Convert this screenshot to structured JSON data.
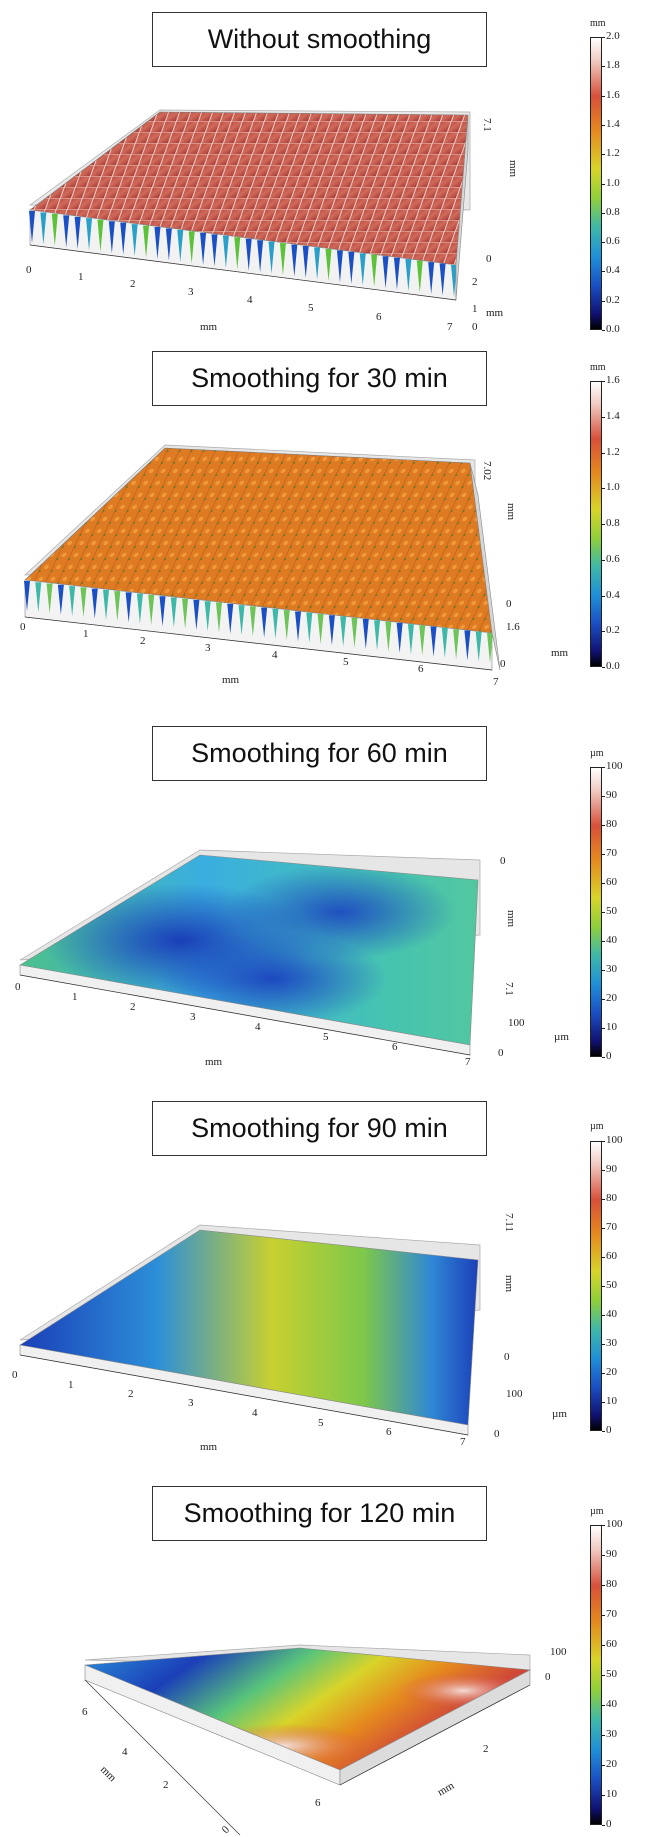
{
  "panels": [
    {
      "title": "Without smoothing",
      "colorbar": {
        "unit": "mm",
        "ticks": [
          "2.0",
          "1.8",
          "1.6",
          "1.4",
          "1.2",
          "1.0",
          "0.8",
          "0.6",
          "0.4",
          "0.2",
          "0.0"
        ]
      },
      "x_axis": {
        "label": "mm",
        "ticks": [
          "0",
          "1",
          "2",
          "3",
          "4",
          "5",
          "6",
          "7"
        ]
      },
      "y_axis": {
        "label": "mm",
        "ticks": [
          "7.1",
          "0"
        ]
      },
      "z_axis": {
        "label": "mm",
        "ticks": [
          "0",
          "1",
          "2"
        ]
      }
    },
    {
      "title": "Smoothing  for 30 min",
      "colorbar": {
        "unit": "mm",
        "ticks": [
          "1.6",
          "1.4",
          "1.2",
          "1.0",
          "0.8",
          "0.6",
          "0.4",
          "0.2",
          "0.0"
        ]
      },
      "x_axis": {
        "label": "mm",
        "ticks": [
          "0",
          "1",
          "2",
          "3",
          "4",
          "5",
          "6",
          "7"
        ]
      },
      "y_axis": {
        "label": "mm",
        "ticks": [
          "7.02",
          "0"
        ]
      },
      "z_axis": {
        "label": "mm",
        "ticks": [
          "1.6",
          "0"
        ]
      }
    },
    {
      "title": "Smoothing  for 60 min",
      "colorbar": {
        "unit": "µm",
        "ticks": [
          "100",
          "90",
          "80",
          "70",
          "60",
          "50",
          "40",
          "30",
          "20",
          "10",
          "0"
        ]
      },
      "x_axis": {
        "label": "mm",
        "ticks": [
          "0",
          "1",
          "2",
          "3",
          "4",
          "5",
          "6",
          "7"
        ]
      },
      "y_axis": {
        "label": "mm",
        "ticks": [
          "0",
          "7.1"
        ]
      },
      "z_axis": {
        "label": "µm",
        "ticks": [
          "100",
          "0"
        ]
      }
    },
    {
      "title": "Smoothing  for 90 min",
      "colorbar": {
        "unit": "µm",
        "ticks": [
          "100",
          "90",
          "80",
          "70",
          "60",
          "50",
          "40",
          "30",
          "20",
          "10",
          "0"
        ]
      },
      "x_axis": {
        "label": "mm",
        "ticks": [
          "0",
          "1",
          "2",
          "3",
          "4",
          "5",
          "6",
          "7"
        ]
      },
      "y_axis": {
        "label": "mm",
        "ticks": [
          "7.11",
          "0"
        ]
      },
      "z_axis": {
        "label": "µm",
        "ticks": [
          "100",
          "0"
        ]
      }
    },
    {
      "title": "Smoothing  for 120 min",
      "colorbar": {
        "unit": "µm",
        "ticks": [
          "100",
          "90",
          "80",
          "70",
          "60",
          "50",
          "40",
          "30",
          "20",
          "10",
          "0"
        ]
      },
      "x_axis": {
        "label": "mm",
        "ticks": [
          "6",
          "4",
          "2",
          "0"
        ]
      },
      "y_axis": {
        "label": "mm",
        "ticks": [
          "6",
          "4",
          "2"
        ]
      },
      "z_axis": {
        "label": "",
        "ticks": [
          "100",
          "0"
        ]
      }
    }
  ],
  "colors": {
    "surface_orange": "#e07a1e",
    "surface_red": "#c8403a",
    "surface_blue": "#1b4fc4",
    "surface_cyan": "#3fb8d8",
    "surface_green": "#6cc45a",
    "surface_yellow": "#d8d42a"
  }
}
